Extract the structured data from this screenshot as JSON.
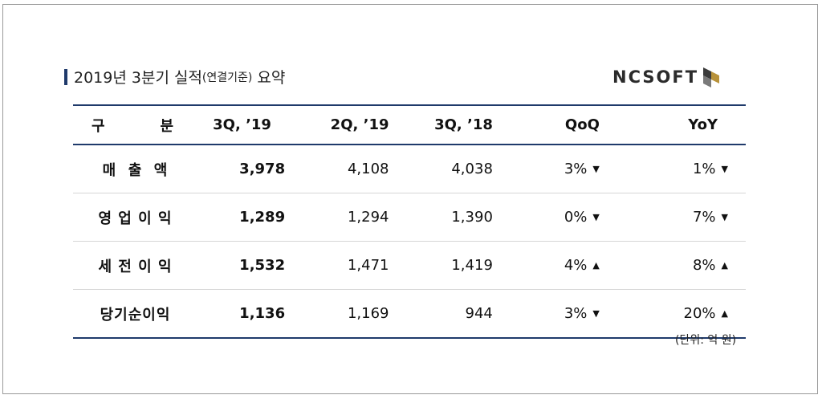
{
  "title": {
    "main": "2019년 3분기 실적",
    "sub": "(연결기준)",
    "suffix": " 요약"
  },
  "logo": {
    "text": "NCSOFT",
    "icon": "ncsoft-logo-icon"
  },
  "table": {
    "headers": [
      "구",
      "분",
      "3Q, ’19",
      "2Q, ’19",
      "3Q, ’18",
      "QoQ",
      "YoY"
    ],
    "rows": [
      {
        "label": "매  출  액",
        "q3_19": "3,978",
        "q2_19": "4,108",
        "q3_18": "4,038",
        "qoq": "3%",
        "qoq_dir": "▼",
        "yoy": "1%",
        "yoy_dir": "▼"
      },
      {
        "label": "영 업 이 익",
        "q3_19": "1,289",
        "q2_19": "1,294",
        "q3_18": "1,390",
        "qoq": "0%",
        "qoq_dir": "▼",
        "yoy": "7%",
        "yoy_dir": "▼"
      },
      {
        "label": "세 전 이 익",
        "q3_19": "1,532",
        "q2_19": "1,471",
        "q3_18": "1,419",
        "qoq": "4%",
        "qoq_dir": "▲",
        "yoy": "8%",
        "yoy_dir": "▲"
      },
      {
        "label": "당기순이익",
        "q3_19": "1,136",
        "q2_19": "1,169",
        "q3_18": "944",
        "qoq": "3%",
        "qoq_dir": "▼",
        "yoy": "20%",
        "yoy_dir": "▲"
      }
    ]
  },
  "unit_note": "(단위: 억 원)",
  "colors": {
    "accent": "#1f3a6b",
    "row_divider": "#d6d6d6",
    "frame": "#9a9a9a"
  }
}
